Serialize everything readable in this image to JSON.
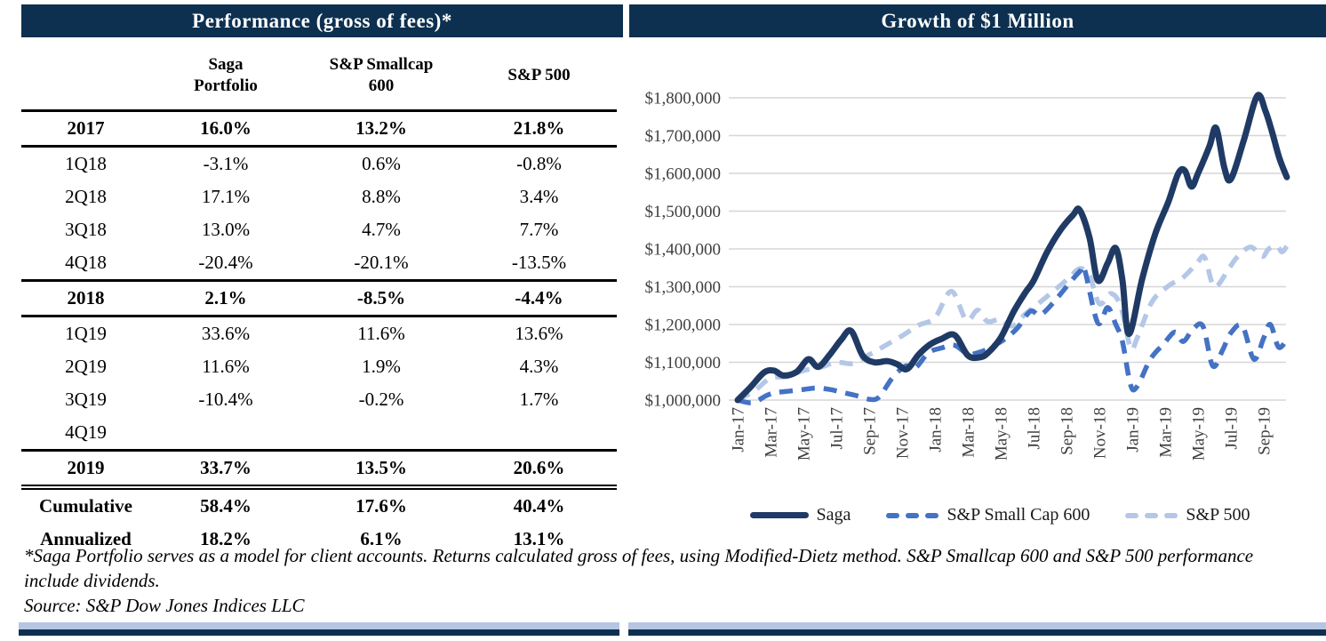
{
  "left_panel": {
    "title": "Performance (gross of fees)*",
    "table": {
      "column_headers": [
        "",
        "Saga\nPortfolio",
        "S&P Smallcap\n600",
        "S&P 500"
      ],
      "rows": [
        {
          "label": "2017",
          "saga": "16.0%",
          "sc600": "13.2%",
          "sp500": "21.8%",
          "style": "year"
        },
        {
          "label": "1Q18",
          "saga": "-3.1%",
          "sc600": "0.6%",
          "sp500": "-0.8%",
          "style": "quarter"
        },
        {
          "label": "2Q18",
          "saga": "17.1%",
          "sc600": "8.8%",
          "sp500": "3.4%",
          "style": "quarter"
        },
        {
          "label": "3Q18",
          "saga": "13.0%",
          "sc600": "4.7%",
          "sp500": "7.7%",
          "style": "quarter"
        },
        {
          "label": "4Q18",
          "saga": "-20.4%",
          "sc600": "-20.1%",
          "sp500": "-13.5%",
          "style": "quarter"
        },
        {
          "label": "2018",
          "saga": "2.1%",
          "sc600": "-8.5%",
          "sp500": "-4.4%",
          "style": "year"
        },
        {
          "label": "1Q19",
          "saga": "33.6%",
          "sc600": "11.6%",
          "sp500": "13.6%",
          "style": "quarter"
        },
        {
          "label": "2Q19",
          "saga": "11.6%",
          "sc600": "1.9%",
          "sp500": "4.3%",
          "style": "quarter"
        },
        {
          "label": "3Q19",
          "saga": "-10.4%",
          "sc600": "-0.2%",
          "sp500": "1.7%",
          "style": "quarter"
        },
        {
          "label": "4Q19",
          "saga": "",
          "sc600": "",
          "sp500": "",
          "style": "quarter"
        },
        {
          "label": "2019",
          "saga": "33.7%",
          "sc600": "13.5%",
          "sp500": "20.6%",
          "style": "year-final"
        },
        {
          "label": "Cumulative",
          "saga": "58.4%",
          "sc600": "17.6%",
          "sp500": "40.4%",
          "style": "summary"
        },
        {
          "label": "Annualized",
          "saga": "18.2%",
          "sc600": "6.1%",
          "sp500": "13.1%",
          "style": "summary"
        }
      ]
    }
  },
  "right_panel": {
    "title": "Growth of $1 Million",
    "legend": [
      {
        "name": "Saga",
        "color": "#1f3a64",
        "style": "solid"
      },
      {
        "name": "S&P Small Cap 600",
        "color": "#4472c4",
        "style": "dashed"
      },
      {
        "name": "S&P 500",
        "color": "#b4c7e7",
        "style": "dashed"
      }
    ]
  },
  "chart_data": {
    "type": "line",
    "title": "Growth of $1 Million",
    "x_unit": "months since Jan-2017",
    "y_unit": "millions of USD",
    "y_axis": {
      "min": 1000000,
      "max": 1800000,
      "tick_interval": 100000,
      "tick_labels": [
        "$1,000,000",
        "$1,100,000",
        "$1,200,000",
        "$1,300,000",
        "$1,400,000",
        "$1,500,000",
        "$1,600,000",
        "$1,700,000",
        "$1,800,000"
      ]
    },
    "x_axis": {
      "tick_labels": [
        "Jan-17",
        "Mar-17",
        "May-17",
        "Jul-17",
        "Sep-17",
        "Nov-17",
        "Jan-18",
        "Mar-18",
        "May-18",
        "Jul-18",
        "Sep-18",
        "Nov-18",
        "Jan-19",
        "Mar-19",
        "May-19",
        "Jul-19",
        "Sep-19"
      ],
      "months_per_tick": 2
    },
    "grid": true,
    "legend_position": "bottom",
    "series": [
      {
        "name": "Saga",
        "color": "#1f3a64",
        "line_style": "solid",
        "stroke_width": 7,
        "points": [
          [
            0,
            1.0
          ],
          [
            0.8,
            1.035
          ],
          [
            1.6,
            1.073
          ],
          [
            2.2,
            1.078
          ],
          [
            2.8,
            1.065
          ],
          [
            3.6,
            1.075
          ],
          [
            4.3,
            1.108
          ],
          [
            4.9,
            1.088
          ],
          [
            5.6,
            1.12
          ],
          [
            6.3,
            1.16
          ],
          [
            6.9,
            1.183
          ],
          [
            7.6,
            1.118
          ],
          [
            8.3,
            1.1
          ],
          [
            9.1,
            1.103
          ],
          [
            9.7,
            1.095
          ],
          [
            10.3,
            1.082
          ],
          [
            11,
            1.12
          ],
          [
            11.7,
            1.147
          ],
          [
            12.4,
            1.162
          ],
          [
            13.2,
            1.172
          ],
          [
            14,
            1.118
          ],
          [
            14.7,
            1.113
          ],
          [
            15.2,
            1.124
          ],
          [
            16,
            1.165
          ],
          [
            16.8,
            1.235
          ],
          [
            17.5,
            1.285
          ],
          [
            18,
            1.316
          ],
          [
            18.8,
            1.39
          ],
          [
            19.6,
            1.448
          ],
          [
            20.4,
            1.49
          ],
          [
            20.8,
            1.503
          ],
          [
            21.4,
            1.43
          ],
          [
            21.9,
            1.317
          ],
          [
            22.5,
            1.362
          ],
          [
            23,
            1.402
          ],
          [
            23.4,
            1.318
          ],
          [
            23.8,
            1.175
          ],
          [
            24.6,
            1.32
          ],
          [
            25.4,
            1.44
          ],
          [
            26.2,
            1.525
          ],
          [
            26.8,
            1.6
          ],
          [
            27.2,
            1.607
          ],
          [
            27.6,
            1.565
          ],
          [
            28,
            1.6
          ],
          [
            28.7,
            1.672
          ],
          [
            29.1,
            1.72
          ],
          [
            29.6,
            1.615
          ],
          [
            30,
            1.585
          ],
          [
            30.8,
            1.69
          ],
          [
            31.6,
            1.805
          ],
          [
            32.1,
            1.765
          ],
          [
            32.5,
            1.71
          ],
          [
            32.95,
            1.64
          ],
          [
            33.4,
            1.59
          ]
        ]
      },
      {
        "name": "S&P Small Cap 600",
        "color": "#4472c4",
        "line_style": "dashed",
        "stroke_width": 5.5,
        "points": [
          [
            0,
            1.0
          ],
          [
            0.9,
            0.993
          ],
          [
            1.8,
            1.013
          ],
          [
            2.4,
            1.02
          ],
          [
            3.2,
            1.024
          ],
          [
            4,
            1.028
          ],
          [
            4.8,
            1.032
          ],
          [
            5.6,
            1.028
          ],
          [
            6.4,
            1.02
          ],
          [
            7.2,
            1.012
          ],
          [
            8,
            1.002
          ],
          [
            8.6,
            1.008
          ],
          [
            9.4,
            1.058
          ],
          [
            10.2,
            1.09
          ],
          [
            10.8,
            1.085
          ],
          [
            11.6,
            1.125
          ],
          [
            12.4,
            1.138
          ],
          [
            13.2,
            1.145
          ],
          [
            14,
            1.122
          ],
          [
            14.8,
            1.128
          ],
          [
            15.4,
            1.14
          ],
          [
            16.2,
            1.16
          ],
          [
            17,
            1.19
          ],
          [
            17.8,
            1.235
          ],
          [
            18.4,
            1.225
          ],
          [
            19.2,
            1.258
          ],
          [
            20,
            1.3
          ],
          [
            20.8,
            1.34
          ],
          [
            21.1,
            1.345
          ],
          [
            21.9,
            1.205
          ],
          [
            22.5,
            1.245
          ],
          [
            23,
            1.2
          ],
          [
            23.4,
            1.155
          ],
          [
            23.9,
            1.04
          ],
          [
            24.3,
            1.036
          ],
          [
            25.1,
            1.108
          ],
          [
            25.9,
            1.148
          ],
          [
            26.6,
            1.18
          ],
          [
            27.1,
            1.155
          ],
          [
            27.7,
            1.188
          ],
          [
            28.3,
            1.195
          ],
          [
            28.9,
            1.09
          ],
          [
            29.5,
            1.133
          ],
          [
            30,
            1.178
          ],
          [
            30.7,
            1.196
          ],
          [
            31.4,
            1.108
          ],
          [
            32,
            1.165
          ],
          [
            32.4,
            1.2
          ],
          [
            32.9,
            1.14
          ],
          [
            33.4,
            1.16
          ]
        ]
      },
      {
        "name": "S&P 500",
        "color": "#b4c7e7",
        "line_style": "dashed",
        "stroke_width": 5.5,
        "points": [
          [
            0,
            1.0
          ],
          [
            1,
            1.024
          ],
          [
            2,
            1.058
          ],
          [
            3,
            1.062
          ],
          [
            4,
            1.078
          ],
          [
            5,
            1.086
          ],
          [
            6,
            1.1
          ],
          [
            7,
            1.097
          ],
          [
            8,
            1.12
          ],
          [
            9,
            1.145
          ],
          [
            10,
            1.17
          ],
          [
            11,
            1.198
          ],
          [
            12,
            1.218
          ],
          [
            13,
            1.288
          ],
          [
            13.9,
            1.212
          ],
          [
            14.6,
            1.238
          ],
          [
            15.2,
            1.208
          ],
          [
            16,
            1.214
          ],
          [
            16.7,
            1.196
          ],
          [
            17.5,
            1.228
          ],
          [
            18.2,
            1.252
          ],
          [
            19.2,
            1.288
          ],
          [
            20.2,
            1.325
          ],
          [
            20.8,
            1.348
          ],
          [
            21.4,
            1.33
          ],
          [
            22,
            1.255
          ],
          [
            22.7,
            1.282
          ],
          [
            23.3,
            1.248
          ],
          [
            23.9,
            1.138
          ],
          [
            24.3,
            1.164
          ],
          [
            25.2,
            1.26
          ],
          [
            26.2,
            1.302
          ],
          [
            27.1,
            1.325
          ],
          [
            27.9,
            1.36
          ],
          [
            28.4,
            1.378
          ],
          [
            29,
            1.3
          ],
          [
            29.9,
            1.35
          ],
          [
            30.4,
            1.379
          ],
          [
            31.2,
            1.405
          ],
          [
            31.9,
            1.38
          ],
          [
            32.3,
            1.4
          ],
          [
            32.8,
            1.408
          ],
          [
            33.1,
            1.392
          ],
          [
            33.4,
            1.407
          ]
        ]
      }
    ]
  },
  "footnote": {
    "line1": "*Saga Portfolio serves as a model for client accounts. Returns calculated gross of fees, using Modified-Dietz method. S&P Smallcap 600 and S&P 500 performance include dividends.",
    "source": "Source: S&P Dow Jones Indices LLC"
  },
  "colors": {
    "header_bar": "#0d3050",
    "bottom_bar_light": "#b6c5e2",
    "grid": "#d6d6d6",
    "axis_text": "#3f3f3f"
  }
}
